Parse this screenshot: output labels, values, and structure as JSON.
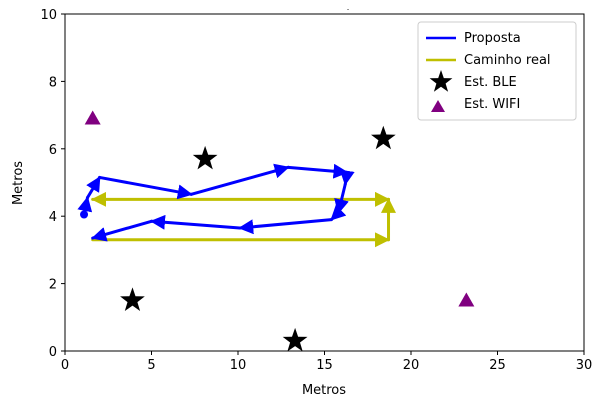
{
  "chart_data": {
    "type": "line",
    "title": ".",
    "xlabel": "Metros",
    "ylabel": "Metros",
    "xlim": [
      0,
      30
    ],
    "ylim": [
      0,
      10
    ],
    "xticks": [
      0,
      5,
      10,
      15,
      20,
      25,
      30
    ],
    "yticks": [
      0,
      2,
      4,
      6,
      8,
      10
    ],
    "xtick_labels": [
      "0",
      "5",
      "10",
      "15",
      "20",
      "25",
      "30"
    ],
    "ytick_labels": [
      "0",
      "2",
      "4",
      "6",
      "8",
      "10"
    ],
    "grid": false,
    "legend_position": "top-right",
    "series": [
      {
        "name": "Proposta",
        "kind": "line-with-arrows",
        "color": "#0000ff",
        "x": [
          1.1,
          1.3,
          2.0,
          7.3,
          12.9,
          16.3,
          16.2,
          15.8,
          15.4,
          10.1,
          5.0,
          1.6
        ],
        "y": [
          4.05,
          4.55,
          5.15,
          4.65,
          5.45,
          5.3,
          4.95,
          4.1,
          3.9,
          3.65,
          3.85,
          3.35
        ]
      },
      {
        "name": "Caminho real",
        "kind": "line-with-arrows",
        "color": "#bfbf00",
        "x": [
          1.6,
          18.7,
          18.7,
          18.7,
          1.6
        ],
        "y": [
          3.3,
          3.3,
          4.5,
          4.5,
          4.5
        ]
      },
      {
        "name": "Est. BLE",
        "kind": "scatter",
        "marker": "star",
        "color": "#000000",
        "x": [
          8.1,
          18.4,
          3.9,
          13.3
        ],
        "y": [
          5.7,
          6.3,
          1.5,
          0.3
        ]
      },
      {
        "name": "Est. WIFI",
        "kind": "scatter",
        "marker": "triangle",
        "color": "#800080",
        "x": [
          1.6,
          23.2
        ],
        "y": [
          6.9,
          1.5
        ]
      }
    ]
  }
}
